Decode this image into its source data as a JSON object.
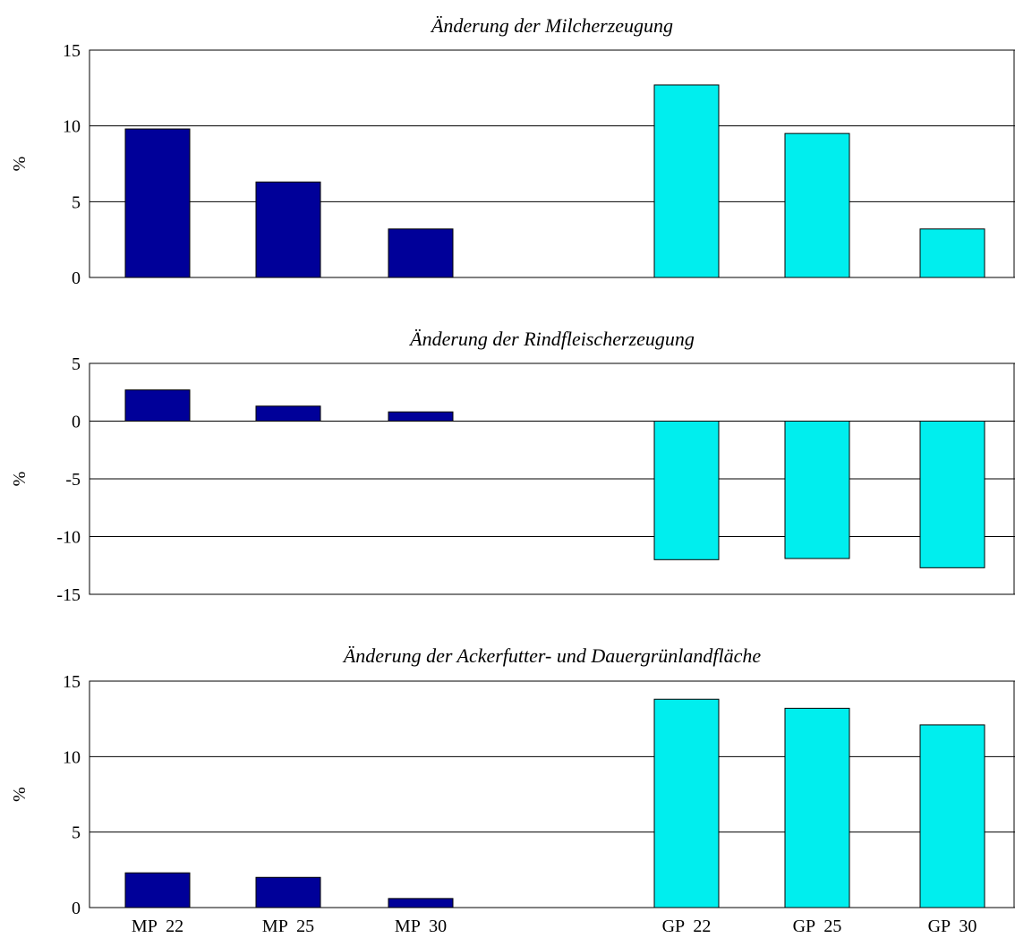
{
  "colors": {
    "mp": "#000099",
    "gp": "#00EEEE",
    "stroke": "#000000"
  },
  "chart_data": [
    {
      "type": "bar",
      "title": "Änderung der Milcherzeugung",
      "ylabel": "%",
      "ylim": [
        0,
        15
      ],
      "yticks": [
        0,
        5,
        10,
        15
      ],
      "ytick_labels": [
        "0",
        "5",
        "10",
        "15"
      ],
      "categories": [
        "MP  22",
        "MP  25",
        "MP  30",
        "GP  22",
        "GP  25",
        "GP  30"
      ],
      "values": [
        9.8,
        6.3,
        3.2,
        12.7,
        9.5,
        3.2
      ],
      "grid": true,
      "show_xlabels": false
    },
    {
      "type": "bar",
      "title": "Änderung der Rindfleischerzeugung",
      "ylabel": "%",
      "ylim": [
        -15,
        5
      ],
      "yticks": [
        -15,
        -10,
        -5,
        0,
        5
      ],
      "ytick_labels": [
        "-15",
        "-10",
        "-5",
        "0",
        "5"
      ],
      "categories": [
        "MP  22",
        "MP  25",
        "MP  30",
        "GP  22",
        "GP  25",
        "GP  30"
      ],
      "values": [
        2.7,
        1.3,
        0.8,
        -12.0,
        -11.9,
        -12.7
      ],
      "grid": true,
      "show_xlabels": false
    },
    {
      "type": "bar",
      "title": "Änderung der Ackerfutter- und Dauergrünlandfläche",
      "ylabel": "%",
      "ylim": [
        0,
        15
      ],
      "yticks": [
        0,
        5,
        10,
        15
      ],
      "ytick_labels": [
        "0",
        "5",
        "10",
        "15"
      ],
      "categories": [
        "MP  22",
        "MP  25",
        "MP  30",
        "GP  22",
        "GP  25",
        "GP  30"
      ],
      "values": [
        2.3,
        2.0,
        0.6,
        13.8,
        13.2,
        12.1
      ],
      "grid": true,
      "show_xlabels": true
    }
  ]
}
